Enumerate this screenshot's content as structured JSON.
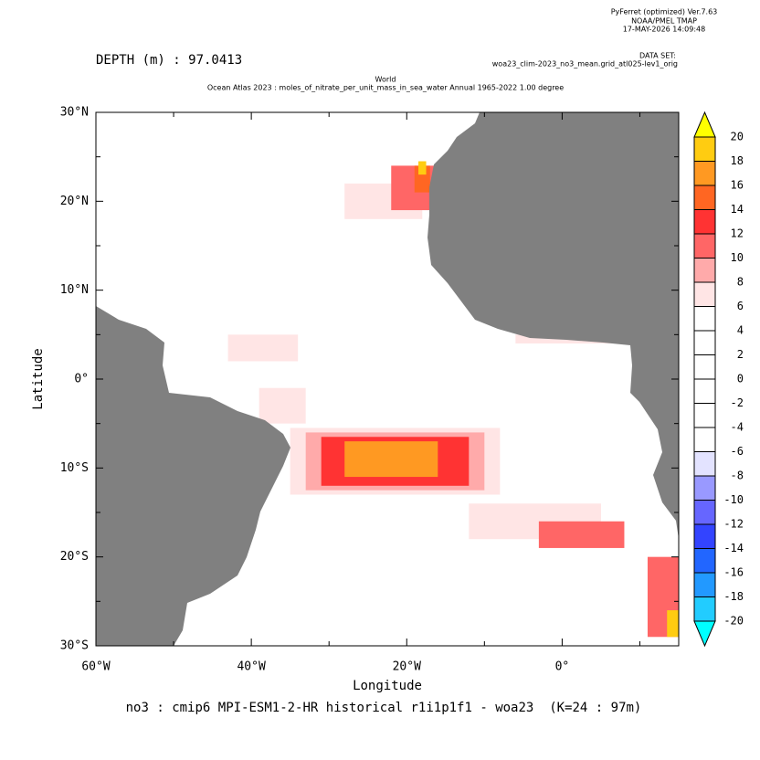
{
  "header": {
    "software": "PyFerret (optimized) Ver.7.63",
    "org": "NOAA/PMEL TMAP",
    "date": "17-MAY-2026 14:09:48",
    "dataset_label": "DATA SET:",
    "dataset": "woa23_clim-2023_no3_mean.grid_atl025-lev1_orig"
  },
  "chart_data": {
    "type": "map",
    "depth": "DEPTH (m) : 97.0413",
    "title": "World",
    "subtitle": "Ocean Atlas 2023 : moles_of_nitrate_per_unit_mass_in_sea_water Annual 1965-2022 1.00 degree",
    "x_label": "Longitude",
    "y_label": "Latitude",
    "footer": "no3 : cmip6 MPI-ESM1-2-HR historical r1i1p1f1 - woa23  (K=24 : 97m)",
    "xlim": [
      -60,
      15
    ],
    "ylim": [
      -30,
      30
    ],
    "xticks": [
      {
        "value": -60,
        "label": "60°W"
      },
      {
        "value": -40,
        "label": "40°W"
      },
      {
        "value": -20,
        "label": "20°W"
      },
      {
        "value": 0,
        "label": "0°"
      }
    ],
    "xminor": [
      -50,
      -30,
      -10,
      10
    ],
    "yticks": [
      {
        "value": -30,
        "label": "30°S"
      },
      {
        "value": -20,
        "label": "20°S"
      },
      {
        "value": -10,
        "label": "10°S"
      },
      {
        "value": 0,
        "label": "0°"
      },
      {
        "value": 10,
        "label": "10°N"
      },
      {
        "value": 20,
        "label": "20°N"
      },
      {
        "value": 30,
        "label": "30°N"
      }
    ],
    "yminor": [
      -25,
      -15,
      -5,
      5,
      15,
      25
    ],
    "land_color": "#808080",
    "colorbar": {
      "levels": [
        -20,
        -18,
        -16,
        -14,
        -12,
        -10,
        -8,
        -6,
        -4,
        -2,
        0,
        2,
        4,
        6,
        8,
        10,
        12,
        14,
        16,
        18,
        20
      ],
      "colors": [
        "#00ffff",
        "#22ccff",
        "#2299ff",
        "#2266ff",
        "#3344ff",
        "#6666ff",
        "#9999ff",
        "#e3e3ff",
        "#ffffff",
        "#ffffff",
        "#ffffff",
        "#ffffff",
        "#ffffff",
        "#ffffff",
        "#ffe5e5",
        "#ffaaaa",
        "#ff6666",
        "#ff3333",
        "#ff6622",
        "#ff9922",
        "#ffcc11",
        "#ffff00"
      ]
    },
    "patches": [
      {
        "lon": [
          -35,
          -8
        ],
        "lat": [
          -13,
          -5.5
        ],
        "value": 7
      },
      {
        "lon": [
          -33,
          -10
        ],
        "lat": [
          -12.5,
          -6
        ],
        "value": 9
      },
      {
        "lon": [
          -31,
          -12
        ],
        "lat": [
          -12,
          -6.5
        ],
        "value": 13
      },
      {
        "lon": [
          -28,
          -16
        ],
        "lat": [
          -11,
          -7
        ],
        "value": 17
      },
      {
        "lon": [
          -12,
          5
        ],
        "lat": [
          -18,
          -14
        ],
        "value": 7
      },
      {
        "lon": [
          -3,
          8
        ],
        "lat": [
          -19,
          -16
        ],
        "value": 11
      },
      {
        "lon": [
          -28,
          -18
        ],
        "lat": [
          18,
          22
        ],
        "value": 7
      },
      {
        "lon": [
          -22,
          -16.5
        ],
        "lat": [
          19,
          24
        ],
        "value": 11
      },
      {
        "lon": [
          -19,
          -17
        ],
        "lat": [
          21,
          24
        ],
        "value": 15
      },
      {
        "lon": [
          -18.5,
          -17.5
        ],
        "lat": [
          23,
          24.5
        ],
        "value": 19
      },
      {
        "lon": [
          -43,
          -34
        ],
        "lat": [
          2,
          5
        ],
        "value": 7
      },
      {
        "lon": [
          -39,
          -33
        ],
        "lat": [
          -5,
          -1
        ],
        "value": 7
      },
      {
        "lon": [
          -6,
          8
        ],
        "lat": [
          4,
          5
        ],
        "value": 7
      },
      {
        "lon": [
          11,
          15
        ],
        "lat": [
          -29,
          -20
        ],
        "value": 11
      },
      {
        "lon": [
          13.5,
          15
        ],
        "lat": [
          -29,
          -26
        ],
        "value": 19
      }
    ]
  }
}
